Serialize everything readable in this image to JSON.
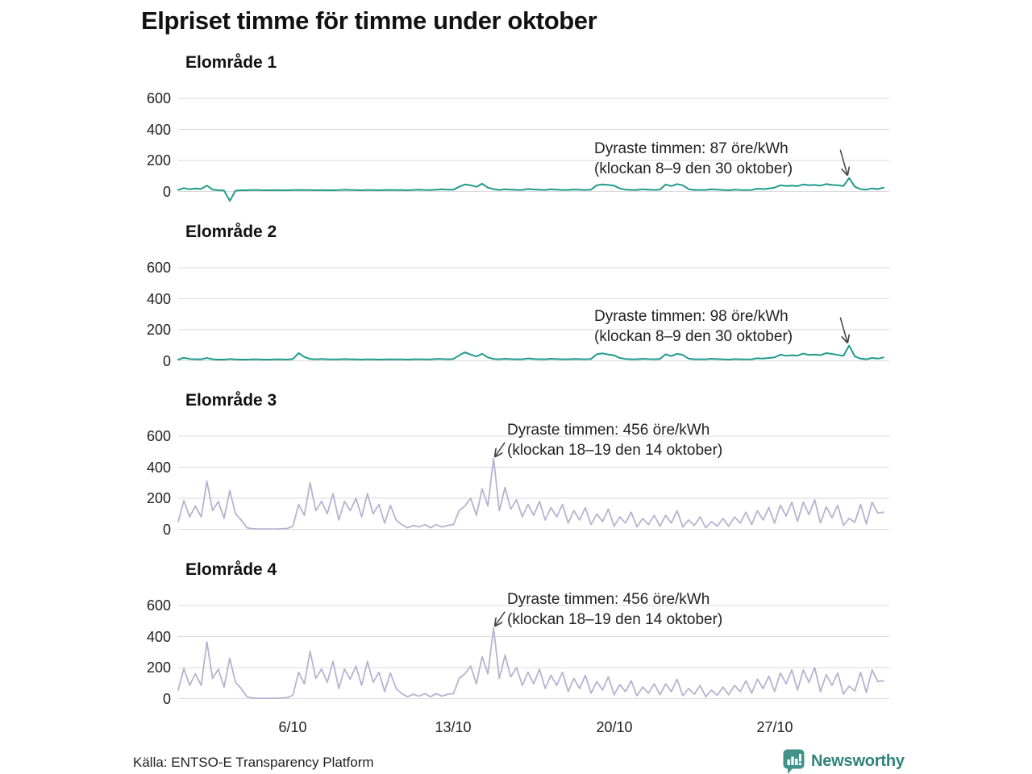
{
  "title": "Elpriset timme för timme under oktober",
  "source": "Källa: ENTSO-E Transparency Platform",
  "brand": {
    "name": "Newsworthy",
    "color": "#43928a",
    "text_color": "#2f837b"
  },
  "colors": {
    "teal": "#1f9b8c",
    "lavender": "#b6b3d2",
    "grid": "#dadada",
    "text": "#222222",
    "arrow": "#444444"
  },
  "y_ticks": [
    600,
    400,
    200,
    0
  ],
  "x_axis": {
    "labels": [
      "6/10",
      "13/10",
      "20/10",
      "27/10"
    ],
    "label_days": [
      6,
      13,
      20,
      27
    ]
  },
  "chart_data": [
    {
      "type": "line",
      "name": "Elområde 1",
      "unit": "öre/kWh",
      "month": "oktober",
      "ylim": [
        0,
        600
      ],
      "sample_interval_hours": 6,
      "x_range_hours": 744,
      "color": "#1f9b8c",
      "annotation": {
        "line1": "Dyraste timmen: 87 öre/kWh",
        "line2": "(klockan 8–9 den 30 oktober)",
        "peak_value": 87,
        "peak_hours": "8–9",
        "peak_date": "30 oktober"
      },
      "values": [
        10,
        22,
        14,
        20,
        16,
        38,
        12,
        8,
        6,
        -60,
        5,
        8,
        8,
        10,
        9,
        8,
        8,
        9,
        8,
        8,
        9,
        10,
        9,
        9,
        8,
        9,
        8,
        8,
        9,
        11,
        10,
        9,
        8,
        10,
        9,
        8,
        9,
        10,
        9,
        9,
        8,
        10,
        12,
        10,
        9,
        12,
        14,
        12,
        12,
        30,
        45,
        40,
        30,
        50,
        25,
        15,
        10,
        14,
        12,
        10,
        10,
        16,
        13,
        11,
        10,
        14,
        12,
        10,
        10,
        13,
        11,
        10,
        12,
        40,
        45,
        42,
        38,
        20,
        12,
        10,
        10,
        14,
        12,
        10,
        12,
        45,
        35,
        48,
        40,
        15,
        10,
        10,
        10,
        14,
        12,
        10,
        8,
        12,
        10,
        9,
        10,
        18,
        15,
        20,
        25,
        40,
        35,
        38,
        35,
        45,
        40,
        42,
        38,
        48,
        42,
        40,
        35,
        87,
        30,
        15,
        12,
        20,
        15,
        25
      ]
    },
    {
      "type": "line",
      "name": "Elområde 2",
      "unit": "öre/kWh",
      "month": "oktober",
      "ylim": [
        0,
        600
      ],
      "sample_interval_hours": 6,
      "x_range_hours": 744,
      "color": "#1f9b8c",
      "annotation": {
        "line1": "Dyraste timmen: 98 öre/kWh",
        "line2": "(klockan 8–9 den 30 oktober)",
        "peak_value": 98,
        "peak_hours": "8–9",
        "peak_date": "30 oktober"
      },
      "values": [
        8,
        20,
        12,
        10,
        10,
        18,
        10,
        8,
        8,
        12,
        9,
        8,
        8,
        10,
        9,
        8,
        8,
        10,
        9,
        8,
        12,
        50,
        25,
        12,
        10,
        12,
        10,
        9,
        9,
        11,
        10,
        9,
        8,
        10,
        9,
        8,
        9,
        10,
        9,
        9,
        8,
        10,
        10,
        9,
        9,
        12,
        12,
        10,
        12,
        35,
        55,
        40,
        28,
        45,
        22,
        12,
        10,
        13,
        11,
        10,
        10,
        15,
        12,
        10,
        10,
        13,
        11,
        10,
        10,
        12,
        11,
        10,
        12,
        42,
        48,
        40,
        35,
        18,
        12,
        10,
        10,
        13,
        11,
        10,
        12,
        42,
        30,
        45,
        38,
        14,
        10,
        10,
        10,
        13,
        11,
        10,
        8,
        11,
        10,
        9,
        10,
        16,
        14,
        18,
        22,
        40,
        32,
        36,
        33,
        46,
        38,
        40,
        36,
        50,
        44,
        38,
        32,
        98,
        28,
        14,
        10,
        18,
        14,
        22
      ]
    },
    {
      "type": "line",
      "name": "Elområde 3",
      "unit": "öre/kWh",
      "month": "oktober",
      "ylim": [
        0,
        600
      ],
      "sample_interval_hours": 6,
      "x_range_hours": 744,
      "color": "#b6b3d2",
      "annotation": {
        "line1": "Dyraste timmen: 456 öre/kWh",
        "line2": "(klockan 18–19 den 14 oktober)",
        "peak_value": 456,
        "peak_hours": "18–19",
        "peak_date": "14 oktober"
      },
      "values": [
        50,
        185,
        80,
        150,
        80,
        310,
        120,
        180,
        70,
        250,
        100,
        60,
        10,
        3,
        2,
        2,
        2,
        2,
        3,
        5,
        20,
        160,
        90,
        300,
        120,
        180,
        100,
        230,
        60,
        180,
        120,
        200,
        80,
        230,
        100,
        160,
        40,
        155,
        60,
        30,
        10,
        25,
        15,
        30,
        10,
        30,
        15,
        25,
        30,
        120,
        150,
        200,
        90,
        260,
        150,
        456,
        120,
        270,
        130,
        190,
        80,
        160,
        90,
        180,
        60,
        140,
        80,
        160,
        40,
        120,
        60,
        140,
        30,
        100,
        50,
        130,
        20,
        80,
        40,
        110,
        15,
        70,
        30,
        90,
        20,
        90,
        40,
        120,
        15,
        60,
        25,
        80,
        10,
        50,
        20,
        70,
        20,
        80,
        40,
        110,
        30,
        120,
        60,
        140,
        40,
        155,
        85,
        175,
        50,
        175,
        95,
        190,
        40,
        145,
        75,
        155,
        25,
        70,
        45,
        160,
        35,
        175,
        105,
        110
      ]
    },
    {
      "type": "line",
      "name": "Elområde 4",
      "unit": "öre/kWh",
      "month": "oktober",
      "ylim": [
        0,
        600
      ],
      "sample_interval_hours": 6,
      "x_range_hours": 744,
      "color": "#b6b3d2",
      "annotation": {
        "line1": "Dyraste timmen: 456 öre/kWh",
        "line2": "(klockan 18–19 den 14 oktober)",
        "peak_value": 456,
        "peak_hours": "18–19",
        "peak_date": "14 oktober"
      },
      "values": [
        55,
        195,
        85,
        160,
        85,
        365,
        130,
        190,
        75,
        260,
        105,
        65,
        12,
        4,
        2,
        2,
        2,
        2,
        4,
        6,
        22,
        170,
        95,
        305,
        130,
        190,
        105,
        240,
        65,
        190,
        125,
        210,
        85,
        240,
        105,
        170,
        45,
        165,
        65,
        32,
        12,
        28,
        16,
        32,
        12,
        32,
        16,
        28,
        32,
        130,
        160,
        210,
        95,
        270,
        160,
        456,
        130,
        280,
        140,
        200,
        85,
        170,
        95,
        190,
        65,
        150,
        85,
        170,
        45,
        130,
        65,
        150,
        35,
        110,
        55,
        140,
        25,
        90,
        45,
        115,
        18,
        75,
        35,
        95,
        25,
        95,
        45,
        125,
        18,
        65,
        28,
        85,
        12,
        55,
        22,
        75,
        25,
        85,
        45,
        115,
        35,
        125,
        65,
        145,
        45,
        165,
        95,
        185,
        55,
        185,
        105,
        200,
        45,
        155,
        85,
        165,
        30,
        80,
        50,
        170,
        40,
        185,
        110,
        115
      ]
    }
  ]
}
